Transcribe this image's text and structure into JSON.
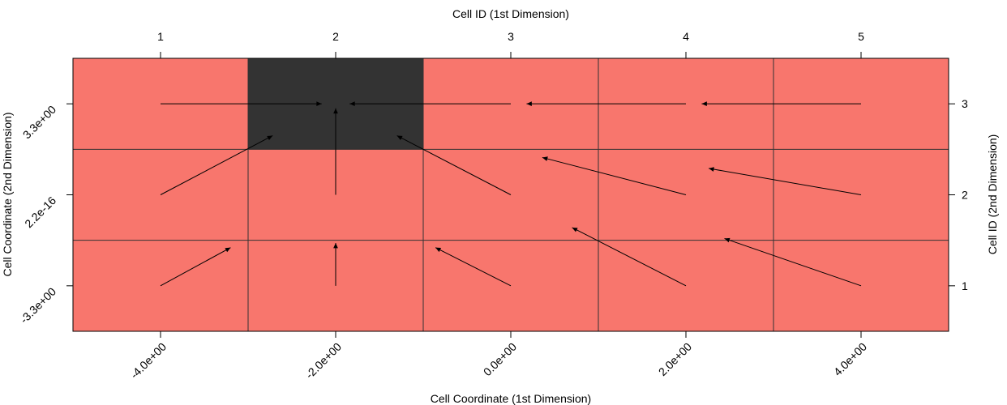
{
  "chart_data": {
    "type": "heatmap",
    "title": "",
    "xlabel_bottom": "Cell Coordinate (1st Dimension)",
    "xlabel_top": "Cell ID (1st Dimension)",
    "ylabel_left": "Cell Coordinate (2nd Dimension)",
    "ylabel_right": "Cell ID (2nd Dimension)",
    "x_ids": [
      1,
      2,
      3,
      4,
      5
    ],
    "y_ids": [
      1,
      2,
      3
    ],
    "x_coord_labels": [
      "-4.0e+00",
      "-2.0e+00",
      "0.0e+00",
      "2.0e+00",
      "4.0e+00"
    ],
    "y_coord_labels": [
      "-3.3e+00",
      "2.2e-16",
      "3.3e+00"
    ],
    "xlim": [
      0.5,
      5.5
    ],
    "ylim": [
      0.5,
      3.5
    ],
    "colors": {
      "cell": "#F8766D",
      "target": "#333333",
      "grid": "#333333",
      "arrow": "#000000"
    },
    "highlighted_cells": [
      [
        2,
        3
      ]
    ],
    "arrows": [
      {
        "from": [
          1,
          1
        ],
        "to": [
          1.4,
          1.42
        ]
      },
      {
        "from": [
          2,
          1
        ],
        "to": [
          2,
          1.47
        ]
      },
      {
        "from": [
          3,
          1
        ],
        "to": [
          2.57,
          1.42
        ]
      },
      {
        "from": [
          4,
          1
        ],
        "to": [
          3.35,
          1.64
        ]
      },
      {
        "from": [
          5,
          1
        ],
        "to": [
          4.22,
          1.52
        ]
      },
      {
        "from": [
          1,
          2
        ],
        "to": [
          1.64,
          2.65
        ]
      },
      {
        "from": [
          2,
          2
        ],
        "to": [
          2,
          2.95
        ]
      },
      {
        "from": [
          3,
          2
        ],
        "to": [
          2.35,
          2.65
        ]
      },
      {
        "from": [
          4,
          2
        ],
        "to": [
          3.18,
          2.41
        ]
      },
      {
        "from": [
          5,
          2
        ],
        "to": [
          4.13,
          2.29
        ]
      },
      {
        "from": [
          1,
          3
        ],
        "to": [
          1.92,
          3
        ]
      },
      {
        "from": [
          3,
          3
        ],
        "to": [
          2.08,
          3
        ]
      },
      {
        "from": [
          4,
          3
        ],
        "to": [
          3.09,
          3
        ]
      },
      {
        "from": [
          5,
          3
        ],
        "to": [
          4.09,
          3
        ]
      }
    ]
  }
}
